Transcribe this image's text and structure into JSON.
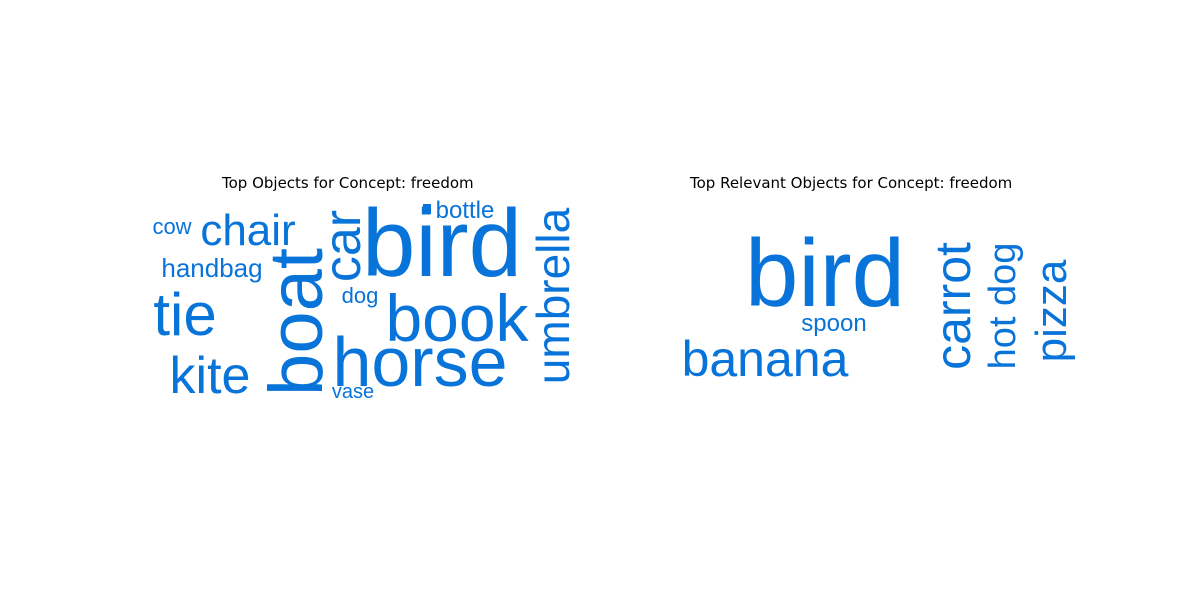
{
  "chart_data": [
    {
      "type": "wordcloud",
      "title": "Top Objects for Concept: freedom",
      "color": "#0873d9",
      "words": [
        "bird",
        "boat",
        "horse",
        "book",
        "umbrella",
        "car",
        "tie",
        "kite",
        "chair",
        "handbag",
        "bottle",
        "dog",
        "cow",
        "vase"
      ]
    },
    {
      "type": "wordcloud",
      "title": "Top Relevant Objects for Concept: freedom",
      "color": "#0873d9",
      "words": [
        "bird",
        "banana",
        "carrot",
        "pizza",
        "hot dog",
        "spoon"
      ]
    }
  ]
}
